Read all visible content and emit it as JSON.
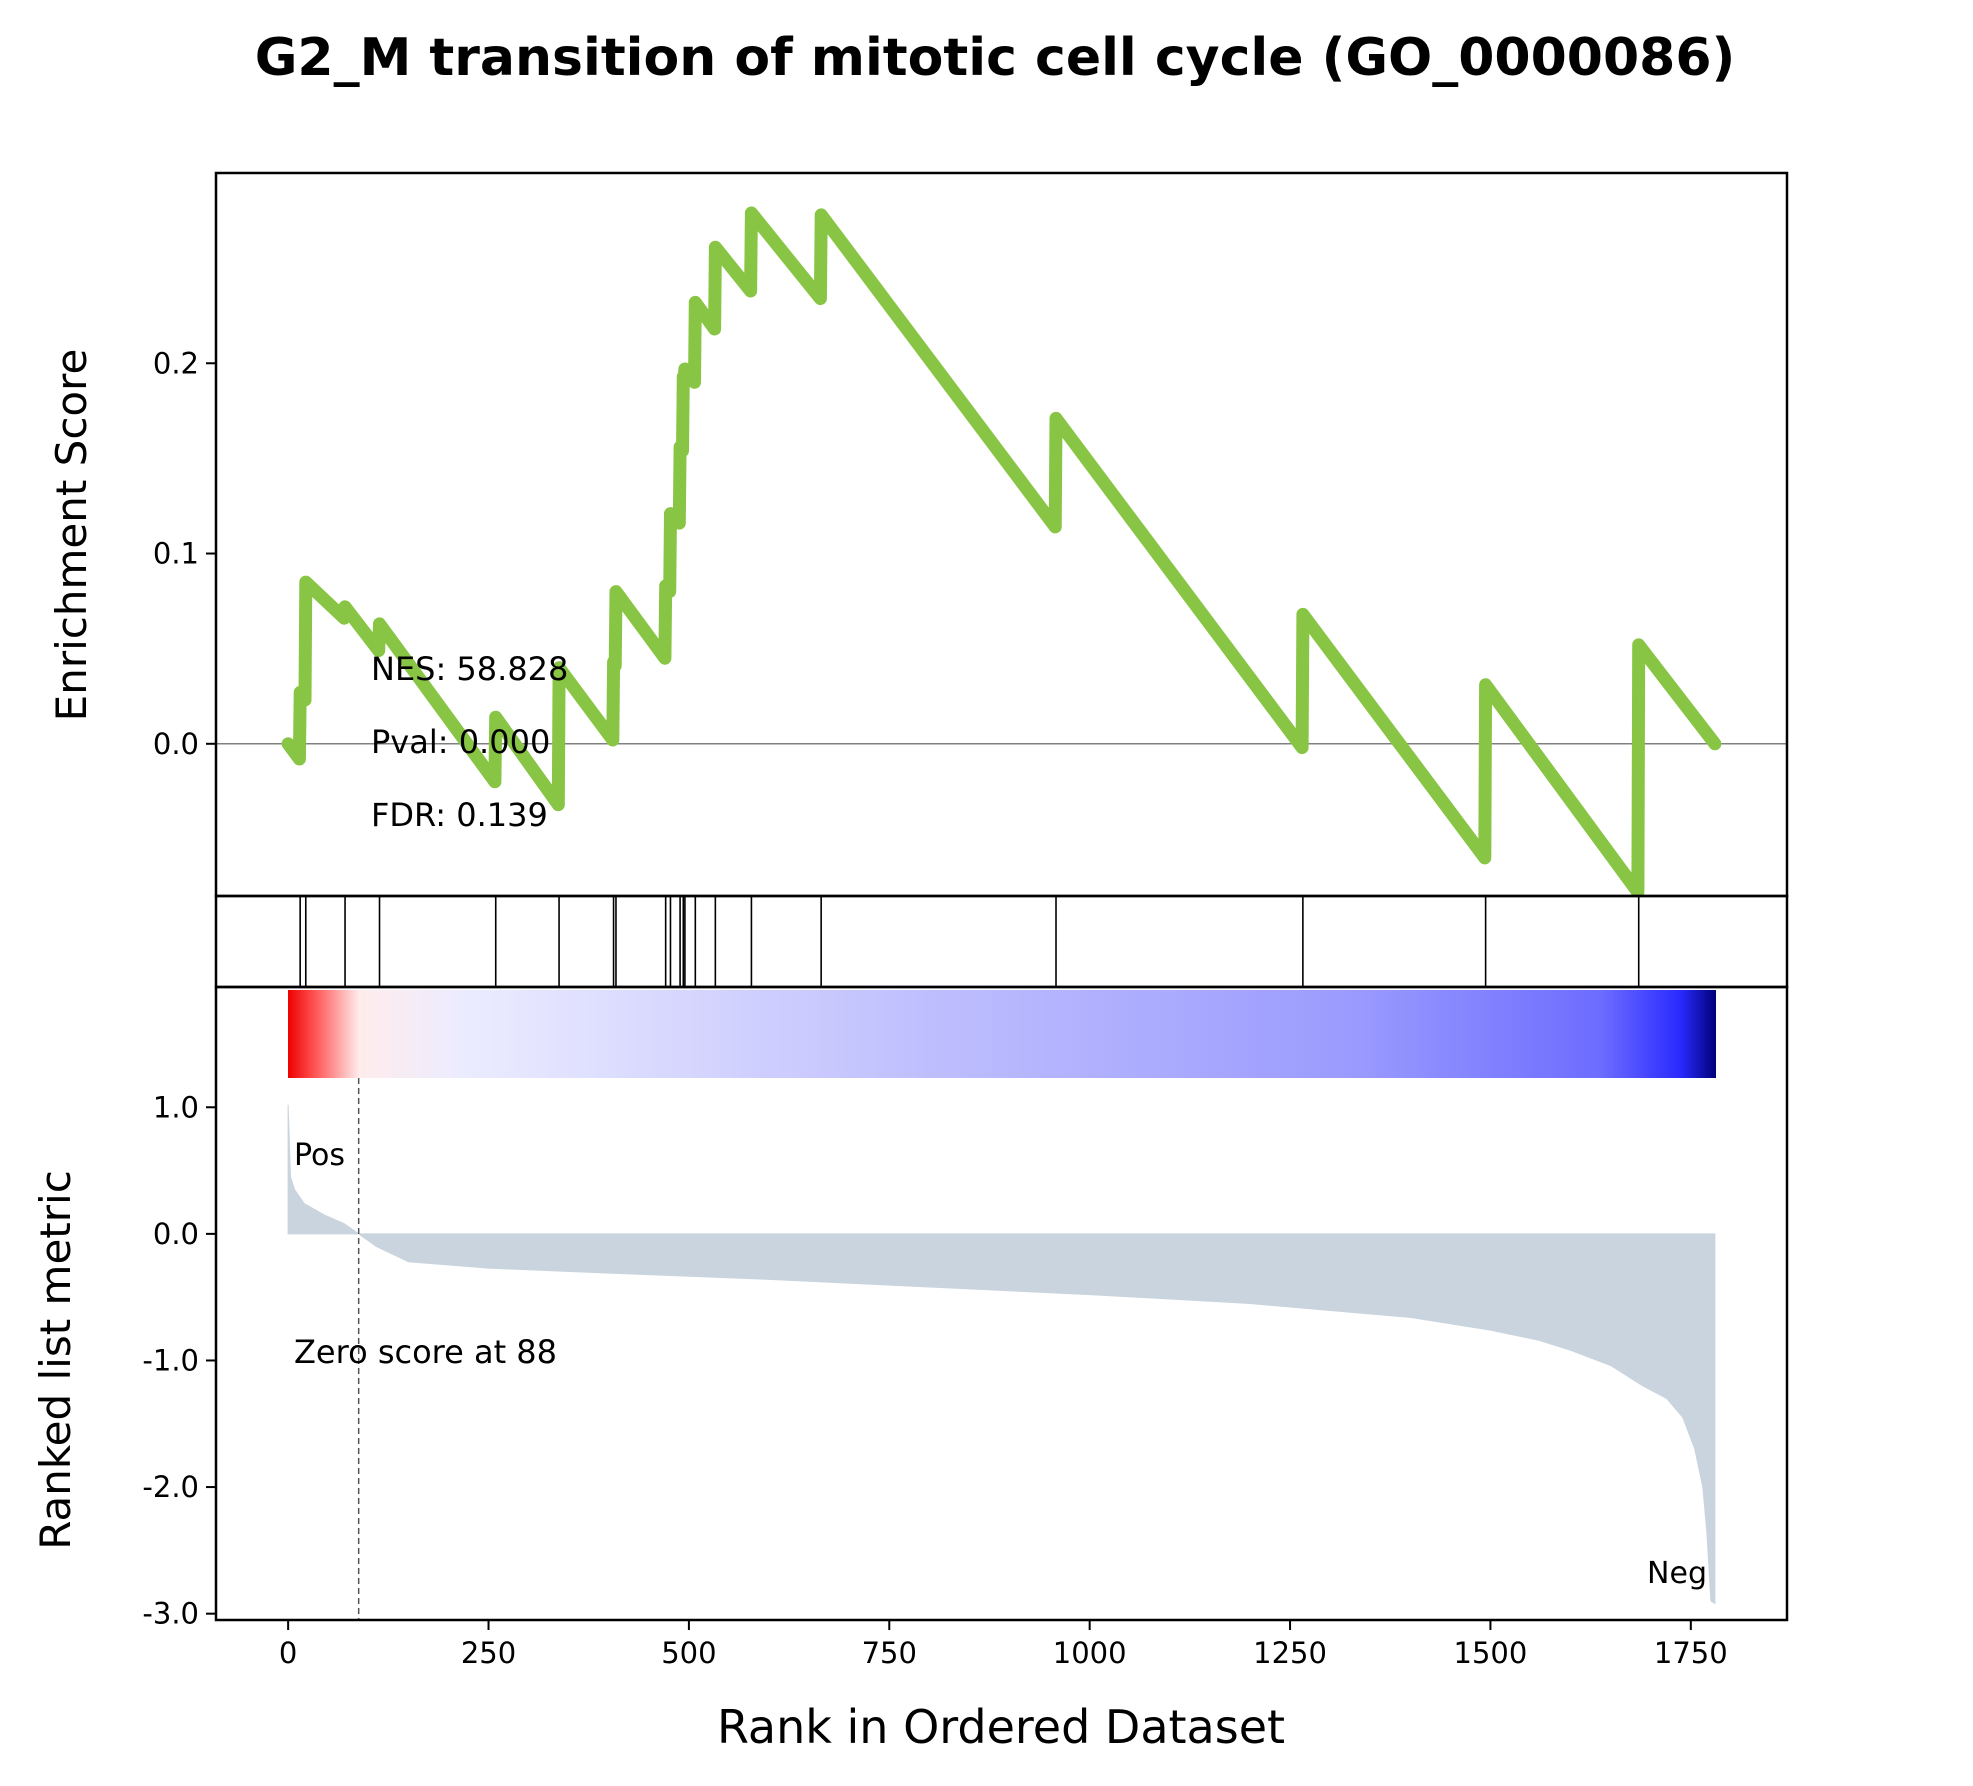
{
  "chart_data": {
    "type": "line",
    "title": "G2_M transition of mitotic cell cycle (GO_0000086)",
    "colors": {
      "es_line": "#88c544",
      "hit_lines": "#000000",
      "metric_fill": "#c9d4de",
      "pos_label": "#ff0000",
      "neg_label": "#0000ff",
      "zero_line": "#808080"
    },
    "enrichment": {
      "ylabel": "Enrichment Score",
      "ylim": [
        -0.08,
        0.3
      ],
      "yticks": [
        0.0,
        0.1,
        0.2
      ],
      "ytick_labels": [
        "0.0",
        "0.1",
        "0.2"
      ],
      "xlim": [
        -90,
        1870
      ],
      "hits": [
        15,
        22,
        71,
        114,
        259,
        338,
        406,
        409,
        471,
        477,
        489,
        493,
        495,
        508,
        533,
        578,
        665,
        958,
        1266,
        1494,
        1685
      ],
      "series": [
        {
          "x": [
            0,
            14,
            15,
            21,
            22,
            70,
            71,
            113,
            114,
            258,
            259,
            337,
            338,
            405,
            406,
            408,
            409,
            470,
            471,
            476,
            477,
            488,
            489,
            492,
            493,
            494,
            495,
            507,
            508,
            532,
            533,
            577,
            578,
            664,
            665,
            957,
            958,
            1265,
            1266,
            1493,
            1494,
            1684,
            1685,
            1780
          ],
          "y": [
            0.0,
            -0.008,
            0.027,
            0.023,
            0.085,
            0.066,
            0.072,
            0.049,
            0.063,
            -0.02,
            0.014,
            -0.032,
            0.04,
            0.002,
            0.043,
            0.041,
            0.08,
            0.045,
            0.083,
            0.08,
            0.121,
            0.116,
            0.156,
            0.154,
            0.193,
            0.192,
            0.197,
            0.19,
            0.232,
            0.218,
            0.261,
            0.238,
            0.279,
            0.234,
            0.278,
            0.114,
            0.171,
            -0.002,
            0.068,
            -0.06,
            0.031,
            -0.078,
            0.052,
            0.0
          ]
        }
      ],
      "annotations": [
        "NES: 58.828",
        "Pval: 0.000",
        "FDR: 0.139"
      ]
    },
    "ranked_metric": {
      "ylabel": "Ranked list metric",
      "xlabel": "Rank in Ordered Dataset",
      "ylim": [
        -3.05,
        1.95
      ],
      "yticks": [
        1.0,
        0.0,
        -1.0,
        -2.0,
        -3.0
      ],
      "ytick_labels": [
        "1.0",
        "0.0",
        "-1.0",
        "-2.0",
        "-3.0"
      ],
      "xticks": [
        0,
        250,
        500,
        750,
        1000,
        1250,
        1500,
        1750
      ],
      "xtick_labels": [
        "0",
        "250",
        "500",
        "750",
        "1000",
        "1250",
        "1500",
        "1750"
      ],
      "n_genes": 1780,
      "zero_cross": 88,
      "zero_label": "Zero score at 88",
      "pos_label": "Pos",
      "neg_label": "Neg",
      "curve": {
        "x": [
          0,
          3,
          8,
          20,
          45,
          70,
          88,
          110,
          150,
          250,
          400,
          600,
          800,
          1000,
          1200,
          1400,
          1500,
          1560,
          1600,
          1650,
          1690,
          1720,
          1740,
          1755,
          1765,
          1770,
          1775,
          1780
        ],
        "y": [
          1.02,
          0.45,
          0.35,
          0.24,
          0.15,
          0.08,
          0.0,
          -0.1,
          -0.22,
          -0.27,
          -0.31,
          -0.36,
          -0.42,
          -0.48,
          -0.55,
          -0.66,
          -0.76,
          -0.84,
          -0.92,
          -1.04,
          -1.2,
          -1.3,
          -1.45,
          -1.7,
          -2.0,
          -2.35,
          -2.9,
          -2.92
        ]
      }
    }
  }
}
